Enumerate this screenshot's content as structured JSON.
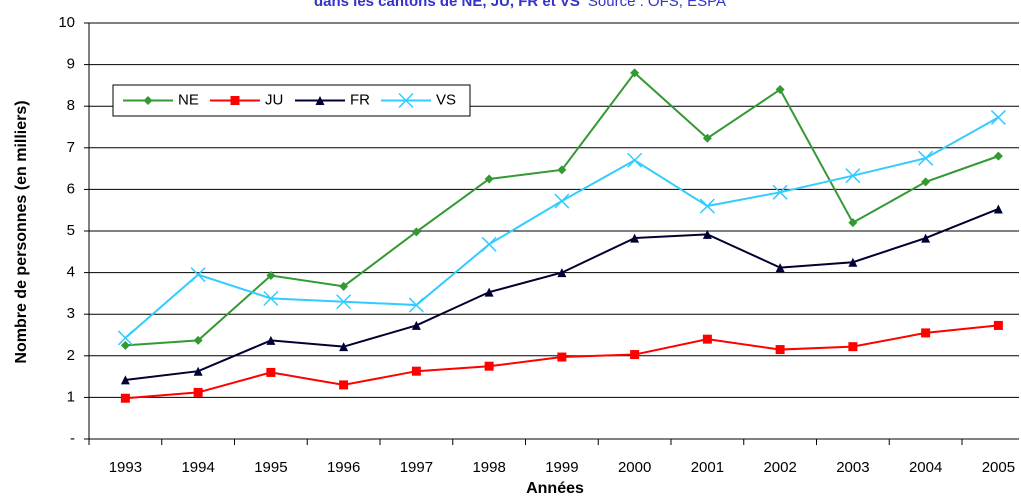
{
  "chart_data": {
    "type": "line",
    "title": "dans les cantons de NE, JU, FR et VS",
    "subtitle": "Source : OFS, ESPA",
    "x_label": "Années",
    "y_label": "Nombre de personnes (en milliers)",
    "categories": [
      "1993",
      "1994",
      "1995",
      "1996",
      "1997",
      "1998",
      "1999",
      "2000",
      "2001",
      "2002",
      "2003",
      "2004",
      "2005"
    ],
    "series": [
      {
        "name": "NE",
        "color": "#339933",
        "marker": "diamond",
        "values": [
          2.25,
          2.37,
          3.93,
          3.67,
          4.98,
          6.25,
          6.47,
          8.8,
          7.23,
          8.4,
          5.2,
          6.18,
          6.8
        ]
      },
      {
        "name": "JU",
        "color": "#ff0000",
        "marker": "square",
        "values": [
          0.98,
          1.12,
          1.6,
          1.3,
          1.63,
          1.75,
          1.97,
          2.03,
          2.4,
          2.15,
          2.22,
          2.55,
          2.73
        ]
      },
      {
        "name": "FR",
        "color": "#000033",
        "marker": "triangle",
        "values": [
          1.42,
          1.63,
          2.37,
          2.22,
          2.73,
          3.53,
          4.0,
          4.83,
          4.92,
          4.12,
          4.25,
          4.83,
          5.53
        ]
      },
      {
        "name": "VS",
        "color": "#33ccff",
        "marker": "x",
        "values": [
          2.43,
          3.95,
          3.38,
          3.3,
          3.22,
          4.68,
          5.72,
          6.7,
          5.6,
          5.93,
          6.33,
          6.75,
          7.73
        ]
      }
    ],
    "ylim": [
      0,
      10
    ],
    "yticks": [
      {
        "value": 0,
        "label": "-"
      },
      1,
      2,
      3,
      4,
      5,
      6,
      7,
      8,
      9,
      10
    ],
    "grid": true,
    "legend": "top-left"
  }
}
